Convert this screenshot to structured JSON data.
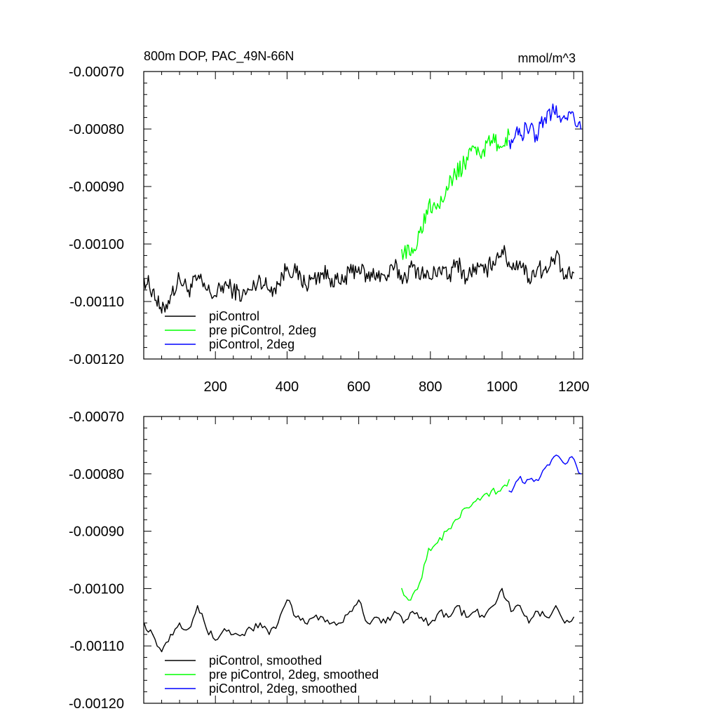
{
  "chart_data": [
    {
      "type": "line",
      "title": "800m DOP, PAC_49N-66N",
      "units": "mmol/m^3",
      "xlim": [
        0,
        1225
      ],
      "ylim": [
        -0.0012,
        -0.0007
      ],
      "yticks": [
        "-0.00070",
        "-0.00080",
        "-0.00090",
        "-0.00100",
        "-0.00110",
        "-0.00120"
      ],
      "xticks": [
        "200",
        "400",
        "600",
        "800",
        "1000",
        "1200"
      ],
      "legend": "bottom-left",
      "series": [
        {
          "name": "piControl",
          "color": "#000000",
          "x": [
            1,
            25,
            50,
            75,
            100,
            125,
            150,
            175,
            200,
            225,
            250,
            275,
            300,
            325,
            350,
            375,
            400,
            425,
            450,
            475,
            500,
            525,
            550,
            575,
            600,
            625,
            650,
            675,
            700,
            725,
            750,
            775,
            800,
            825,
            850,
            875,
            900,
            925,
            950,
            975,
            1000,
            1025,
            1050,
            1075,
            1100,
            1125,
            1150,
            1175,
            1200
          ],
          "y": [
            -0.00106,
            -0.00108,
            -0.00112,
            -0.00109,
            -0.00106,
            -0.00108,
            -0.00106,
            -0.00108,
            -0.00109,
            -0.00107,
            -0.00108,
            -0.00109,
            -0.00108,
            -0.00106,
            -0.00108,
            -0.00107,
            -0.00104,
            -0.00105,
            -0.00107,
            -0.00106,
            -0.00105,
            -0.00106,
            -0.00107,
            -0.00105,
            -0.00104,
            -0.00106,
            -0.00105,
            -0.00106,
            -0.00104,
            -0.00106,
            -0.00104,
            -0.00105,
            -0.00106,
            -0.00104,
            -0.00106,
            -0.00103,
            -0.00106,
            -0.00104,
            -0.00105,
            -0.00103,
            -0.00101,
            -0.00104,
            -0.00103,
            -0.00106,
            -0.00104,
            -0.00105,
            -0.00102,
            -0.00106,
            -0.00105
          ]
        },
        {
          "name": "pre piControl, 2deg",
          "color": "#00ff00",
          "x": [
            720,
            745,
            770,
            795,
            820,
            845,
            870,
            895,
            920,
            945,
            970,
            995,
            1020
          ],
          "y": [
            -0.00101,
            -0.00102,
            -0.00098,
            -0.00093,
            -0.00093,
            -0.0009,
            -0.00088,
            -0.00086,
            -0.00083,
            -0.00084,
            -0.00082,
            -0.00083,
            -0.00081
          ]
        },
        {
          "name": "piControl, 2deg",
          "color": "#0000ff",
          "x": [
            1020,
            1045,
            1070,
            1095,
            1120,
            1145,
            1170,
            1195,
            1220
          ],
          "y": [
            -0.00082,
            -0.00081,
            -0.0008,
            -0.00081,
            -0.00078,
            -0.00077,
            -0.00078,
            -0.00077,
            -0.0008
          ]
        }
      ]
    },
    {
      "type": "line",
      "xlim": [
        0,
        1225
      ],
      "ylim": [
        -0.0012,
        -0.0007
      ],
      "yticks": [
        "-0.00070",
        "-0.00080",
        "-0.00090",
        "-0.00100",
        "-0.00110",
        "-0.00120"
      ],
      "legend": "bottom-left",
      "series": [
        {
          "name": "piControl, smoothed",
          "color": "#000000",
          "x": [
            1,
            25,
            50,
            75,
            100,
            125,
            150,
            175,
            200,
            225,
            250,
            275,
            300,
            325,
            350,
            375,
            400,
            425,
            450,
            475,
            500,
            525,
            550,
            575,
            600,
            625,
            650,
            675,
            700,
            725,
            750,
            775,
            800,
            825,
            850,
            875,
            900,
            925,
            950,
            975,
            1000,
            1025,
            1050,
            1075,
            1100,
            1125,
            1150,
            1175,
            1200
          ],
          "y": [
            -0.00106,
            -0.00108,
            -0.00111,
            -0.00108,
            -0.00106,
            -0.00107,
            -0.00103,
            -0.00107,
            -0.00109,
            -0.00107,
            -0.00108,
            -0.00108,
            -0.00107,
            -0.00106,
            -0.00108,
            -0.00106,
            -0.00102,
            -0.00105,
            -0.00106,
            -0.00105,
            -0.00105,
            -0.00106,
            -0.00106,
            -0.00104,
            -0.00102,
            -0.00106,
            -0.00105,
            -0.00106,
            -0.00104,
            -0.00106,
            -0.00104,
            -0.00105,
            -0.00106,
            -0.00104,
            -0.00105,
            -0.00103,
            -0.00105,
            -0.00104,
            -0.00105,
            -0.00103,
            -0.001,
            -0.00104,
            -0.00103,
            -0.00106,
            -0.00104,
            -0.00105,
            -0.00103,
            -0.00106,
            -0.00105
          ]
        },
        {
          "name": "pre piControl, 2deg, smoothed",
          "color": "#00ff00",
          "x": [
            720,
            745,
            770,
            795,
            820,
            845,
            870,
            895,
            920,
            945,
            970,
            995,
            1020
          ],
          "y": [
            -0.001,
            -0.00102,
            -0.00099,
            -0.00093,
            -0.00092,
            -0.0009,
            -0.00088,
            -0.00086,
            -0.00085,
            -0.00084,
            -0.00083,
            -0.00083,
            -0.00081
          ]
        },
        {
          "name": "piControl, 2deg, smoothed",
          "color": "#0000ff",
          "x": [
            1020,
            1045,
            1070,
            1095,
            1120,
            1145,
            1170,
            1195,
            1220
          ],
          "y": [
            -0.00083,
            -0.00081,
            -0.00081,
            -0.00081,
            -0.00079,
            -0.00077,
            -0.00078,
            -0.00077,
            -0.0008
          ]
        }
      ]
    }
  ]
}
